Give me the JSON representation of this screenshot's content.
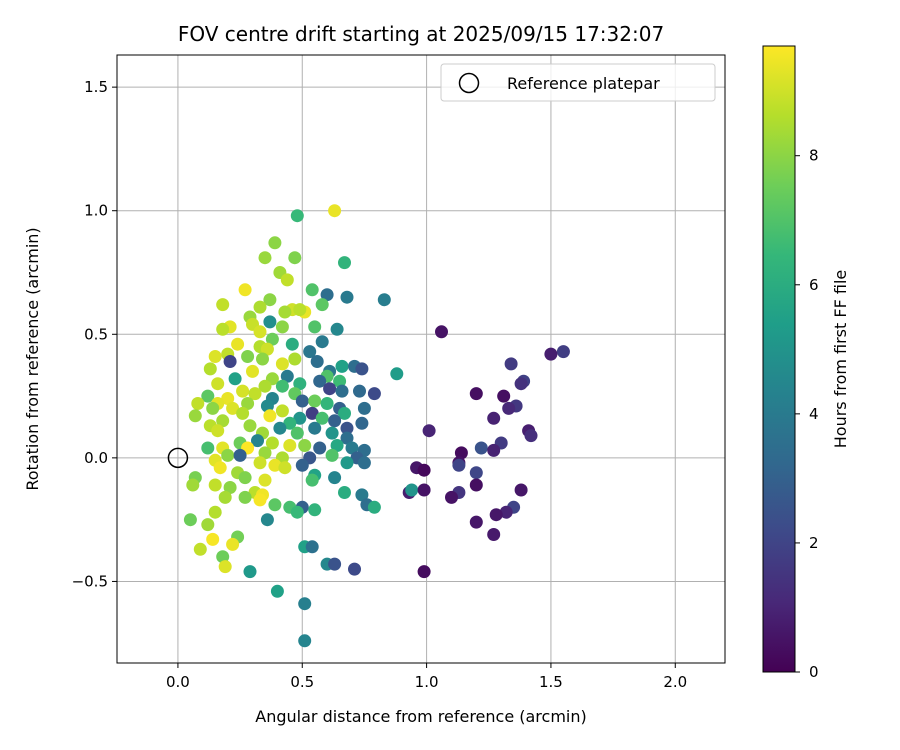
{
  "chart_data": {
    "type": "scatter",
    "title": "FOV centre drift starting at 2025/09/15 17:32:07",
    "xlabel": "Angular distance from reference (arcmin)",
    "ylabel": "Rotation from reference (arcmin)",
    "xlim": [
      -0.245,
      2.2
    ],
    "ylim": [
      -0.83,
      1.63
    ],
    "xticks": [
      0.0,
      0.5,
      1.0,
      1.5,
      2.0
    ],
    "xtick_labels": [
      "0.0",
      "0.5",
      "1.0",
      "1.5",
      "2.0"
    ],
    "yticks": [
      -0.5,
      0.0,
      0.5,
      1.0,
      1.5
    ],
    "ytick_labels": [
      "−0.5",
      "0.0",
      "0.5",
      "1.0",
      "1.5"
    ],
    "grid": true,
    "legend": {
      "position": "top-right",
      "entries": [
        "Reference platepar"
      ]
    },
    "reference_point": {
      "x": 0.0,
      "y": 0.0,
      "label": "Reference platepar"
    },
    "colorbar": {
      "label": "Hours from first FF file",
      "min": 0,
      "max": 9.7,
      "ticks": [
        0,
        2,
        4,
        6,
        8
      ],
      "tick_labels": [
        "0",
        "2",
        "4",
        "6",
        "8"
      ],
      "colormap": "viridis"
    },
    "colormap_stops": [
      "#440154",
      "#482878",
      "#3e4989",
      "#31688e",
      "#26828e",
      "#1f9e89",
      "#35b779",
      "#6ece58",
      "#b5de2b",
      "#fde725"
    ],
    "points": [
      [
        0.63,
        1.0,
        9.4
      ],
      [
        0.48,
        0.98,
        6.5
      ],
      [
        0.39,
        0.87,
        8.0
      ],
      [
        0.35,
        0.81,
        8.2
      ],
      [
        0.47,
        0.81,
        7.8
      ],
      [
        0.67,
        0.79,
        6.3
      ],
      [
        0.41,
        0.75,
        8.3
      ],
      [
        0.44,
        0.72,
        8.8
      ],
      [
        0.27,
        0.68,
        9.5
      ],
      [
        0.54,
        0.68,
        7.0
      ],
      [
        0.6,
        0.66,
        3.5
      ],
      [
        0.68,
        0.65,
        4.0
      ],
      [
        0.83,
        0.64,
        4.1
      ],
      [
        0.37,
        0.64,
        8.0
      ],
      [
        0.58,
        0.62,
        7.2
      ],
      [
        0.18,
        0.62,
        8.8
      ],
      [
        0.33,
        0.61,
        8.5
      ],
      [
        0.46,
        0.6,
        9.0
      ],
      [
        0.51,
        0.59,
        9.4
      ],
      [
        0.49,
        0.6,
        8.7
      ],
      [
        0.43,
        0.59,
        8.4
      ],
      [
        0.29,
        0.57,
        8.2
      ],
      [
        0.37,
        0.55,
        4.8
      ],
      [
        0.3,
        0.54,
        8.9
      ],
      [
        0.21,
        0.53,
        9.3
      ],
      [
        0.18,
        0.52,
        8.7
      ],
      [
        0.42,
        0.53,
        8.0
      ],
      [
        0.55,
        0.53,
        7.0
      ],
      [
        0.64,
        0.52,
        4.5
      ],
      [
        0.33,
        0.51,
        9.1
      ],
      [
        1.06,
        0.51,
        0.5
      ],
      [
        0.38,
        0.48,
        7.5
      ],
      [
        0.58,
        0.47,
        4.0
      ],
      [
        0.46,
        0.46,
        6.0
      ],
      [
        0.24,
        0.46,
        9.4
      ],
      [
        0.33,
        0.45,
        8.6
      ],
      [
        0.36,
        0.44,
        9.0
      ],
      [
        0.53,
        0.43,
        3.8
      ],
      [
        0.2,
        0.42,
        8.8
      ],
      [
        0.15,
        0.41,
        9.2
      ],
      [
        0.47,
        0.4,
        8.5
      ],
      [
        1.55,
        0.43,
        1.8
      ],
      [
        1.5,
        0.42,
        0.8
      ],
      [
        0.28,
        0.41,
        7.8
      ],
      [
        0.34,
        0.4,
        8.0
      ],
      [
        0.21,
        0.39,
        2.0
      ],
      [
        0.56,
        0.39,
        3.5
      ],
      [
        0.42,
        0.38,
        9.2
      ],
      [
        1.34,
        0.38,
        1.7
      ],
      [
        0.66,
        0.37,
        5.5
      ],
      [
        0.71,
        0.37,
        3.5
      ],
      [
        0.74,
        0.36,
        2.5
      ],
      [
        0.61,
        0.35,
        3.8
      ],
      [
        0.13,
        0.36,
        8.6
      ],
      [
        0.88,
        0.34,
        5.3
      ],
      [
        0.3,
        0.35,
        9.3
      ],
      [
        0.44,
        0.33,
        4.0
      ],
      [
        0.6,
        0.33,
        7.0
      ],
      [
        0.65,
        0.31,
        6.6
      ],
      [
        1.39,
        0.31,
        1.9
      ],
      [
        1.38,
        0.3,
        1.4
      ],
      [
        0.23,
        0.32,
        5.5
      ],
      [
        0.38,
        0.32,
        8.2
      ],
      [
        0.57,
        0.31,
        3.2
      ],
      [
        0.49,
        0.3,
        6.2
      ],
      [
        0.16,
        0.3,
        9.0
      ],
      [
        0.35,
        0.29,
        8.5
      ],
      [
        0.42,
        0.29,
        6.7
      ],
      [
        0.61,
        0.28,
        2.0
      ],
      [
        0.66,
        0.27,
        3.5
      ],
      [
        0.73,
        0.27,
        3.3
      ],
      [
        0.79,
        0.26,
        2.2
      ],
      [
        1.2,
        0.26,
        0.4
      ],
      [
        0.26,
        0.27,
        9.1
      ],
      [
        0.31,
        0.26,
        8.8
      ],
      [
        0.47,
        0.26,
        7.3
      ],
      [
        1.31,
        0.25,
        0.4
      ],
      [
        0.12,
        0.25,
        7.2
      ],
      [
        0.2,
        0.24,
        9.4
      ],
      [
        0.38,
        0.24,
        4.4
      ],
      [
        0.5,
        0.23,
        3.0
      ],
      [
        0.55,
        0.23,
        7.5
      ],
      [
        0.6,
        0.22,
        6.4
      ],
      [
        0.08,
        0.22,
        8.8
      ],
      [
        0.16,
        0.22,
        9.3
      ],
      [
        0.28,
        0.22,
        8.2
      ],
      [
        0.36,
        0.21,
        4.6
      ],
      [
        0.65,
        0.2,
        3.0
      ],
      [
        0.75,
        0.2,
        3.5
      ],
      [
        1.36,
        0.21,
        1.6
      ],
      [
        1.33,
        0.2,
        1.1
      ],
      [
        0.14,
        0.2,
        8.0
      ],
      [
        0.22,
        0.2,
        9.2
      ],
      [
        0.42,
        0.19,
        8.8
      ],
      [
        0.54,
        0.18,
        1.8
      ],
      [
        0.67,
        0.18,
        6.0
      ],
      [
        0.07,
        0.17,
        8.2
      ],
      [
        0.26,
        0.18,
        8.6
      ],
      [
        0.37,
        0.17,
        9.5
      ],
      [
        0.49,
        0.16,
        5.0
      ],
      [
        0.58,
        0.16,
        6.8
      ],
      [
        0.63,
        0.15,
        3.0
      ],
      [
        1.27,
        0.16,
        0.9
      ],
      [
        0.18,
        0.15,
        8.4
      ],
      [
        0.45,
        0.14,
        6.3
      ],
      [
        0.74,
        0.14,
        3.2
      ],
      [
        0.13,
        0.13,
        8.7
      ],
      [
        0.29,
        0.13,
        8.2
      ],
      [
        0.41,
        0.12,
        4.5
      ],
      [
        0.55,
        0.12,
        4.0
      ],
      [
        0.68,
        0.12,
        2.5
      ],
      [
        1.41,
        0.11,
        0.8
      ],
      [
        0.16,
        0.11,
        9.0
      ],
      [
        0.34,
        0.1,
        8.3
      ],
      [
        0.48,
        0.1,
        7.0
      ],
      [
        0.62,
        0.1,
        5.0
      ],
      [
        1.01,
        0.11,
        1.0
      ],
      [
        1.42,
        0.09,
        1.3
      ],
      [
        0.68,
        0.08,
        3.5
      ],
      [
        0.25,
        0.06,
        7.5
      ],
      [
        0.32,
        0.07,
        4.4
      ],
      [
        0.38,
        0.06,
        8.6
      ],
      [
        0.51,
        0.05,
        8.0
      ],
      [
        0.64,
        0.05,
        5.8
      ],
      [
        1.3,
        0.06,
        1.7
      ],
      [
        0.12,
        0.04,
        6.8
      ],
      [
        0.18,
        0.04,
        9.3
      ],
      [
        0.28,
        0.04,
        9.7
      ],
      [
        0.45,
        0.05,
        9.2
      ],
      [
        0.57,
        0.04,
        3.0
      ],
      [
        0.7,
        0.04,
        4.0
      ],
      [
        0.75,
        0.03,
        3.5
      ],
      [
        1.14,
        0.02,
        0.3
      ],
      [
        1.22,
        0.04,
        2.5
      ],
      [
        1.27,
        0.03,
        0.9
      ],
      [
        0.2,
        0.01,
        8.0
      ],
      [
        0.25,
        0.01,
        3.0
      ],
      [
        0.35,
        0.02,
        8.2
      ],
      [
        0.42,
        0.0,
        8.5
      ],
      [
        0.53,
        0.0,
        2.6
      ],
      [
        0.62,
        0.01,
        7.0
      ],
      [
        0.72,
        0.0,
        3.0
      ],
      [
        1.13,
        -0.02,
        0.5
      ],
      [
        0.15,
        -0.01,
        9.3
      ],
      [
        0.33,
        -0.02,
        9.0
      ],
      [
        0.5,
        -0.03,
        3.0
      ],
      [
        0.68,
        -0.02,
        5.2
      ],
      [
        0.75,
        -0.02,
        3.5
      ],
      [
        1.13,
        -0.03,
        2.0
      ],
      [
        0.96,
        -0.04,
        0.6
      ],
      [
        0.99,
        -0.05,
        0.2
      ],
      [
        0.17,
        -0.04,
        9.5
      ],
      [
        0.24,
        -0.06,
        8.3
      ],
      [
        0.39,
        -0.03,
        9.4
      ],
      [
        0.43,
        -0.04,
        9.0
      ],
      [
        0.55,
        -0.07,
        5.6
      ],
      [
        0.63,
        -0.08,
        4.4
      ],
      [
        1.2,
        -0.06,
        2.1
      ],
      [
        0.07,
        -0.08,
        7.7
      ],
      [
        0.27,
        -0.08,
        7.8
      ],
      [
        0.35,
        -0.09,
        9.2
      ],
      [
        0.54,
        -0.09,
        6.8
      ],
      [
        0.06,
        -0.11,
        8.3
      ],
      [
        0.15,
        -0.11,
        8.8
      ],
      [
        0.21,
        -0.12,
        8.0
      ],
      [
        1.2,
        -0.11,
        0.4
      ],
      [
        1.38,
        -0.13,
        0.6
      ],
      [
        0.31,
        -0.14,
        8.7
      ],
      [
        0.67,
        -0.14,
        6.0
      ],
      [
        0.74,
        -0.15,
        4.0
      ],
      [
        0.93,
        -0.14,
        0.8
      ],
      [
        0.94,
        -0.13,
        5.0
      ],
      [
        0.99,
        -0.13,
        0.5
      ],
      [
        1.13,
        -0.14,
        1.5
      ],
      [
        0.19,
        -0.16,
        8.4
      ],
      [
        0.27,
        -0.16,
        7.8
      ],
      [
        0.34,
        -0.15,
        9.5
      ],
      [
        0.33,
        -0.17,
        9.6
      ],
      [
        1.1,
        -0.16,
        0.5
      ],
      [
        0.39,
        -0.19,
        7.2
      ],
      [
        0.5,
        -0.2,
        3.0
      ],
      [
        0.55,
        -0.21,
        6.3
      ],
      [
        0.76,
        -0.19,
        3.5
      ],
      [
        0.79,
        -0.2,
        6.0
      ],
      [
        1.35,
        -0.2,
        2.0
      ],
      [
        0.15,
        -0.22,
        8.6
      ],
      [
        0.45,
        -0.2,
        6.8
      ],
      [
        0.48,
        -0.22,
        6.5
      ],
      [
        1.32,
        -0.22,
        1.0
      ],
      [
        1.28,
        -0.23,
        0.6
      ],
      [
        0.05,
        -0.25,
        7.5
      ],
      [
        0.36,
        -0.25,
        4.5
      ],
      [
        1.2,
        -0.26,
        0.6
      ],
      [
        0.12,
        -0.27,
        8.3
      ],
      [
        0.24,
        -0.32,
        7.6
      ],
      [
        0.14,
        -0.33,
        9.6
      ],
      [
        0.22,
        -0.35,
        9.4
      ],
      [
        1.27,
        -0.31,
        0.7
      ],
      [
        0.51,
        -0.36,
        5.5
      ],
      [
        0.54,
        -0.36,
        3.6
      ],
      [
        0.09,
        -0.37,
        8.8
      ],
      [
        0.18,
        -0.4,
        7.5
      ],
      [
        0.6,
        -0.43,
        4.5
      ],
      [
        0.63,
        -0.43,
        2.5
      ],
      [
        0.71,
        -0.45,
        2.2
      ],
      [
        0.29,
        -0.46,
        5.2
      ],
      [
        0.19,
        -0.44,
        9.2
      ],
      [
        0.99,
        -0.46,
        0.3
      ],
      [
        0.4,
        -0.54,
        5.5
      ],
      [
        0.51,
        -0.59,
        4.2
      ],
      [
        0.51,
        -0.74,
        4.4
      ]
    ]
  }
}
